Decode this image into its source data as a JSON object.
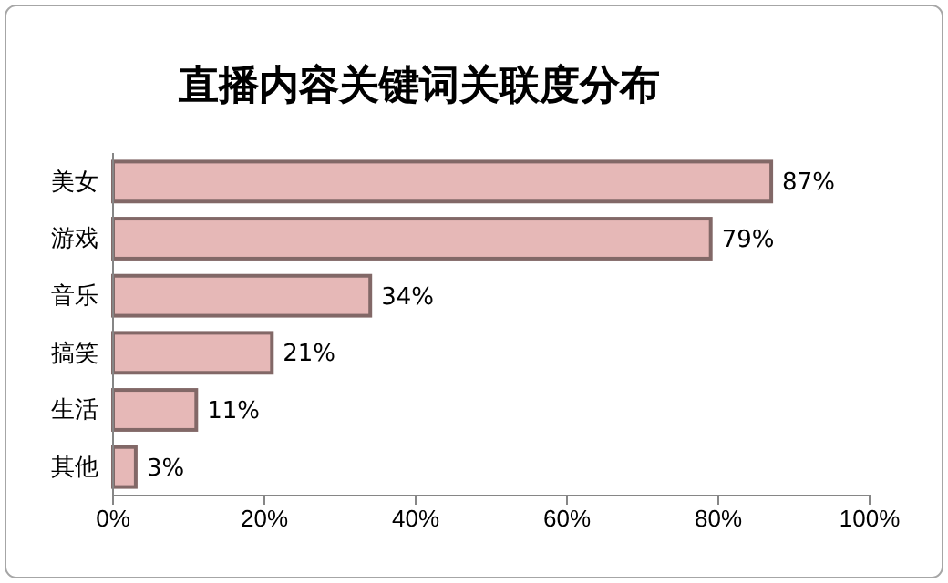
{
  "chart_data": {
    "type": "bar",
    "orientation": "horizontal",
    "title": "直播内容关键词关联度分布",
    "categories": [
      "美女",
      "游戏",
      "音乐",
      "搞笑",
      "生活",
      "其他"
    ],
    "values": [
      87,
      79,
      34,
      21,
      11,
      3
    ],
    "value_labels": [
      "87%",
      "79%",
      "34%",
      "21%",
      "11%",
      "3%"
    ],
    "color": "#e6b8b7",
    "xlim": [
      0,
      100
    ],
    "xticks": [
      {
        "value": 0,
        "label": "0%"
      },
      {
        "value": 20,
        "label": "20%"
      },
      {
        "value": 40,
        "label": "40%"
      },
      {
        "value": 60,
        "label": "60%"
      },
      {
        "value": 80,
        "label": "80%"
      },
      {
        "value": 100,
        "label": "100%"
      }
    ],
    "grid": false
  }
}
